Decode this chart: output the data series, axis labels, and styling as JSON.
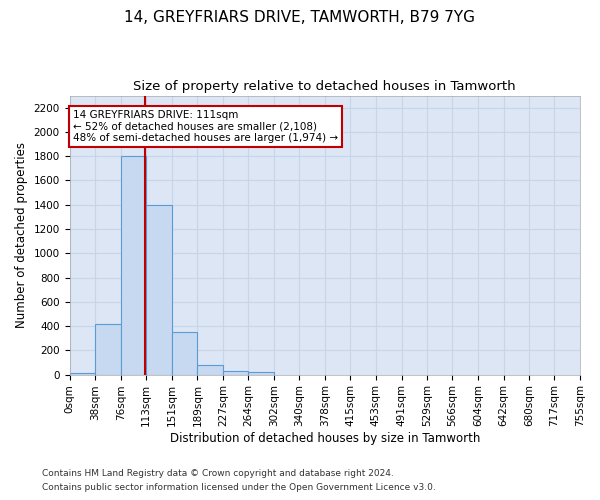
{
  "title": "14, GREYFRIARS DRIVE, TAMWORTH, B79 7YG",
  "subtitle": "Size of property relative to detached houses in Tamworth",
  "xlabel": "Distribution of detached houses by size in Tamworth",
  "ylabel": "Number of detached properties",
  "bin_edges": [
    0,
    38,
    76,
    113,
    151,
    189,
    227,
    264,
    302,
    340,
    378,
    415,
    453,
    491,
    529,
    566,
    604,
    642,
    680,
    717,
    755
  ],
  "bar_heights": [
    15,
    420,
    1800,
    1400,
    350,
    80,
    30,
    18,
    0,
    0,
    0,
    0,
    0,
    0,
    0,
    0,
    0,
    0,
    0,
    0
  ],
  "bar_color": "#c6d9f0",
  "bar_edge_color": "#5b9bd5",
  "property_size": 111,
  "vline_color": "#c00000",
  "annotation_text": "14 GREYFRIARS DRIVE: 111sqm\n← 52% of detached houses are smaller (2,108)\n48% of semi-detached houses are larger (1,974) →",
  "annotation_box_color": "#ffffff",
  "annotation_box_edge_color": "#c00000",
  "ylim": [
    0,
    2300
  ],
  "yticks": [
    0,
    200,
    400,
    600,
    800,
    1000,
    1200,
    1400,
    1600,
    1800,
    2000,
    2200
  ],
  "grid_color": "#c8d4e8",
  "bg_color": "#dce6f5",
  "footer_line1": "Contains HM Land Registry data © Crown copyright and database right 2024.",
  "footer_line2": "Contains public sector information licensed under the Open Government Licence v3.0.",
  "title_fontsize": 11,
  "subtitle_fontsize": 9.5,
  "axis_label_fontsize": 8.5,
  "tick_fontsize": 7.5,
  "annotation_fontsize": 7.5,
  "footer_fontsize": 6.5
}
